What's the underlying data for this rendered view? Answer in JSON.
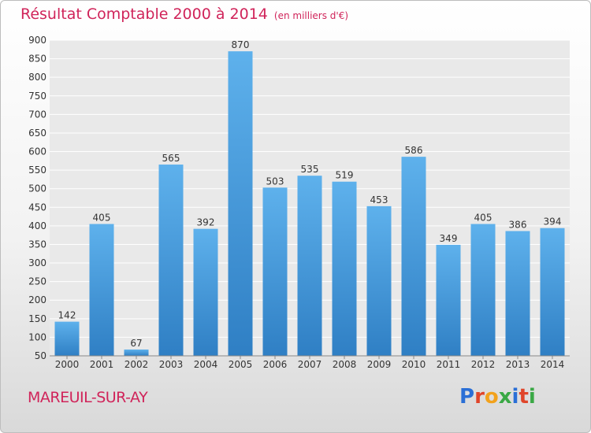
{
  "header": {
    "title": "Résultat Comptable 2000 à 2014",
    "subtitle": "(en milliers d'€)"
  },
  "footer": {
    "place": "MAREUIL-SUR-AY",
    "logo_letters": [
      "P",
      "r",
      "o",
      "x",
      "i",
      "t",
      "i"
    ]
  },
  "colors": {
    "title": "#d0245a",
    "bar_light": "#5eb1ec",
    "bar_dark": "#2f7fc4",
    "logo": [
      "#2a6fd6",
      "#e0452a",
      "#f2a21c",
      "#3aa845",
      "#2a6fd6",
      "#e0452a",
      "#3aa845"
    ]
  },
  "chart_data": {
    "type": "bar",
    "title": "Résultat Comptable 2000 à 2014",
    "xlabel": "",
    "ylabel": "",
    "categories": [
      "2000",
      "2001",
      "2002",
      "2003",
      "2004",
      "2005",
      "2006",
      "2007",
      "2008",
      "2009",
      "2010",
      "2011",
      "2012",
      "2013",
      "2014"
    ],
    "values": [
      142,
      405,
      67,
      565,
      392,
      870,
      503,
      535,
      519,
      453,
      586,
      349,
      405,
      386,
      394
    ],
    "ylim": [
      50,
      900
    ],
    "yticks": [
      50,
      100,
      150,
      200,
      250,
      300,
      350,
      400,
      450,
      500,
      550,
      600,
      650,
      700,
      750,
      800,
      850,
      900
    ],
    "grid": true,
    "legend": "none"
  }
}
